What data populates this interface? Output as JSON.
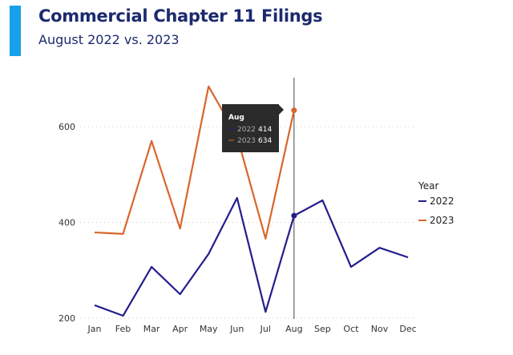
{
  "header": {
    "title": "Commercial Chapter 11 Filings",
    "subtitle": "August 2022 vs. 2023"
  },
  "chart_data": {
    "type": "line",
    "title": "Commercial Chapter 11 Filings",
    "subtitle": "August 2022 vs. 2023",
    "categories": [
      "Jan",
      "Feb",
      "Mar",
      "Apr",
      "May",
      "Jun",
      "Jul",
      "Aug",
      "Sep",
      "Oct",
      "Nov",
      "Dec"
    ],
    "series": [
      {
        "name": "2022",
        "color": "#231d8c",
        "values": [
          227,
          205,
          307,
          250,
          334,
          451,
          213,
          414,
          446,
          307,
          347,
          327
        ]
      },
      {
        "name": "2023",
        "color": "#d9652b",
        "values": [
          379,
          376,
          570,
          387,
          684,
          580,
          366,
          634,
          null,
          null,
          null,
          null
        ]
      }
    ],
    "yticks": [
      200,
      400,
      600
    ],
    "ylim": [
      200,
      600
    ],
    "grid": true,
    "legend_title": "Year",
    "legend_position": "right",
    "tooltip": {
      "category": "Aug",
      "rows": [
        {
          "name": "2022",
          "value": "414"
        },
        {
          "name": "2023",
          "value": "634"
        }
      ]
    }
  }
}
